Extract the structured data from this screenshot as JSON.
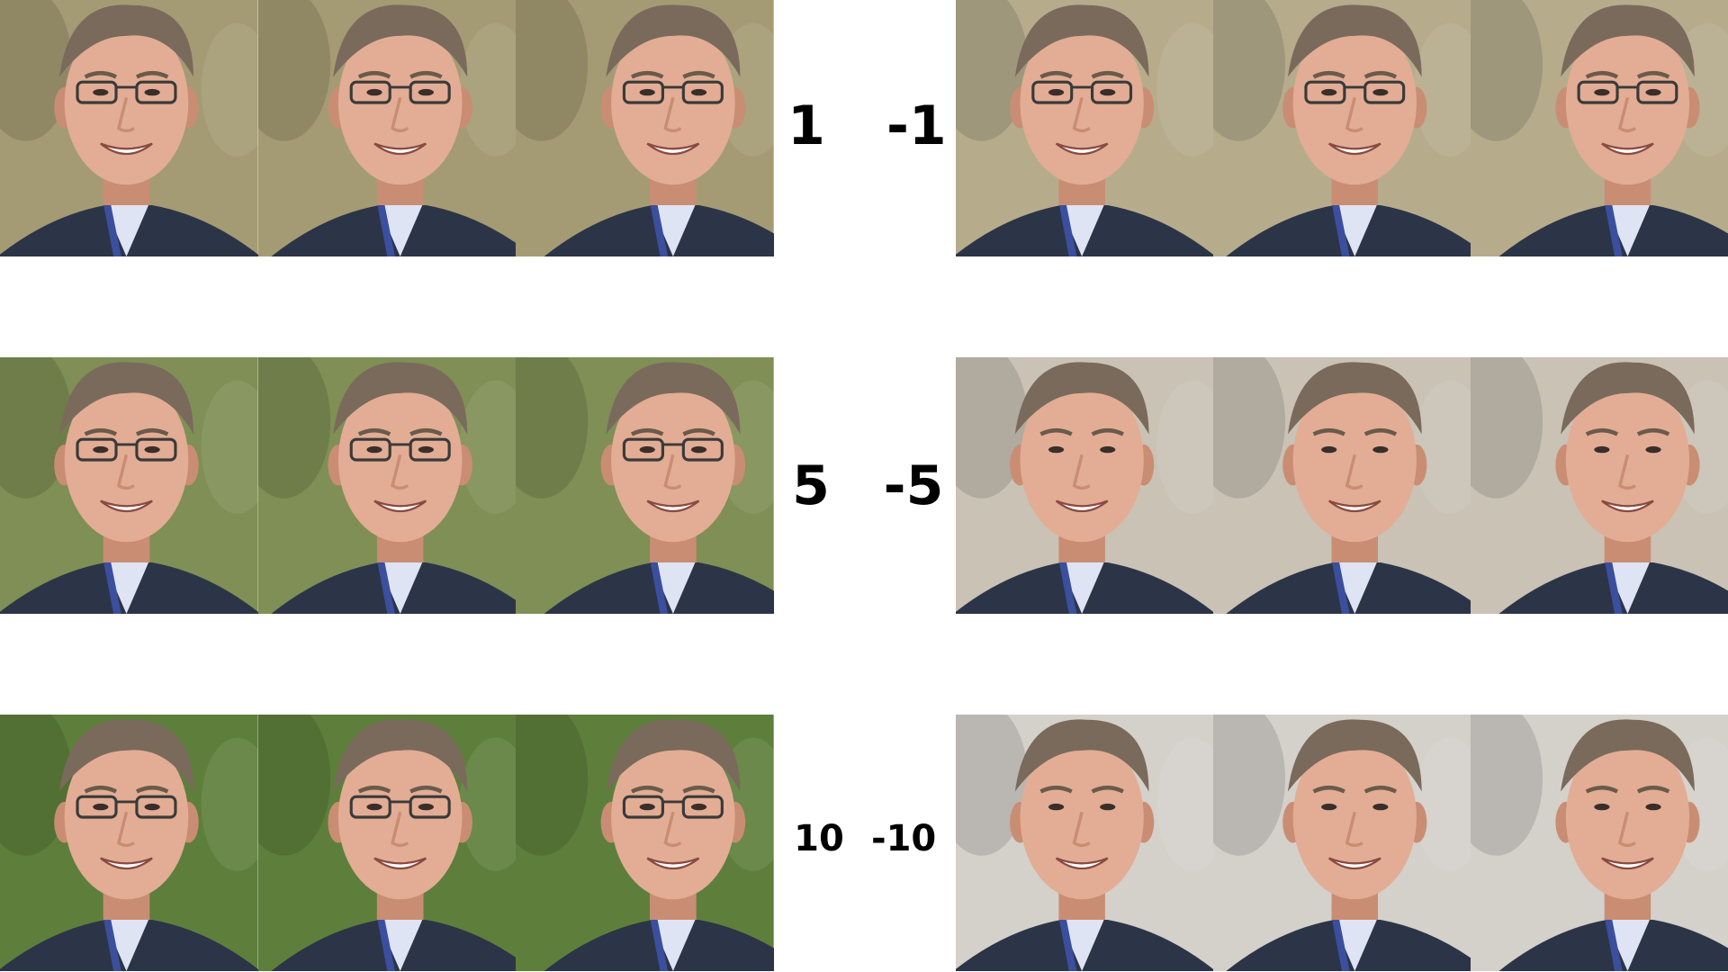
{
  "rows": [
    {
      "positive_label": "1",
      "negative_label": "-1",
      "left_background": "#a49b74",
      "right_background": "#b6ac8c",
      "left_glasses": true,
      "right_glasses": true
    },
    {
      "positive_label": "5",
      "negative_label": "-5",
      "left_background": "#7f8f55",
      "right_background": "#c9c2b5",
      "left_glasses": true,
      "right_glasses": false
    },
    {
      "positive_label": "10",
      "negative_label": "-10",
      "left_background": "#5e7f3c",
      "right_background": "#d4d0ca",
      "left_glasses": true,
      "right_glasses": false
    }
  ],
  "colors": {
    "skin": "#e2ad94",
    "skin_shadow": "#c98d74",
    "hair": "#7a6a5c",
    "jacket": "#2c3547",
    "shirt": "#dfe4f4",
    "shirt_blue": "#3b4f9e",
    "glasses": "#3a3a3a"
  },
  "panels": [
    {
      "view": "three-quarter-left"
    },
    {
      "view": "front"
    },
    {
      "view": "three-quarter-right"
    }
  ]
}
